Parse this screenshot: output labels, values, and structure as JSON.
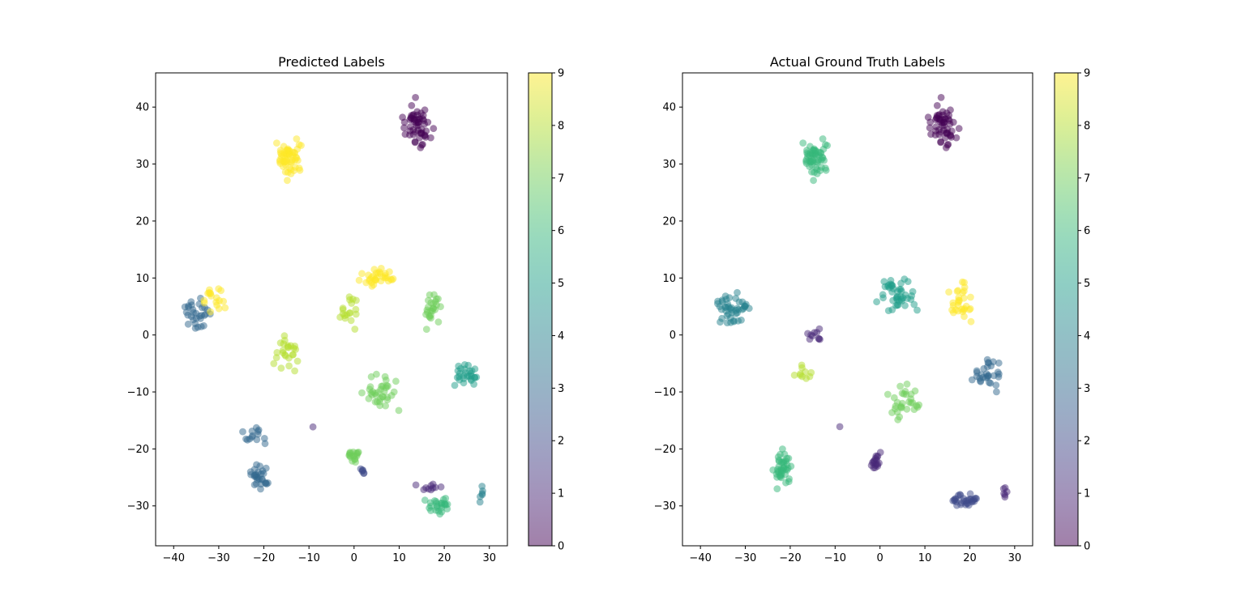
{
  "chart_data": [
    {
      "type": "scatter",
      "title": "Predicted Labels",
      "xlabel": "",
      "ylabel": "",
      "xlim": [
        -44,
        34
      ],
      "ylim": [
        -37,
        46
      ],
      "xticks": [
        -40,
        -30,
        -20,
        -10,
        0,
        10,
        20,
        30
      ],
      "yticks": [
        -30,
        -20,
        -10,
        0,
        10,
        20,
        30,
        40
      ],
      "colorbar": {
        "min": 0,
        "max": 9,
        "ticks": [
          0,
          1,
          2,
          3,
          4,
          5,
          6,
          7,
          8,
          9
        ],
        "colormap": "viridis",
        "alpha": 0.5
      },
      "grid": false,
      "clusters": [
        {
          "label": 0,
          "center": [
            14,
            37
          ],
          "spread": [
            4,
            5
          ],
          "count": 55
        },
        {
          "label": 9,
          "center": [
            -14,
            31
          ],
          "spread": [
            4,
            5
          ],
          "count": 55
        },
        {
          "label": 3,
          "center": [
            -35,
            3
          ],
          "spread": [
            4,
            4
          ],
          "count": 30
        },
        {
          "label": 9,
          "center": [
            -31,
            6
          ],
          "spread": [
            4,
            3
          ],
          "count": 18
        },
        {
          "label": 3,
          "center": [
            -22,
            -18
          ],
          "spread": [
            3,
            2
          ],
          "count": 14
        },
        {
          "label": 3,
          "center": [
            -21,
            -25
          ],
          "spread": [
            3,
            3
          ],
          "count": 28
        },
        {
          "label": 8,
          "center": [
            -15,
            -3
          ],
          "spread": [
            4,
            5
          ],
          "count": 25
        },
        {
          "label": 9,
          "center": [
            5,
            10
          ],
          "spread": [
            6,
            2
          ],
          "count": 32
        },
        {
          "label": 8,
          "center": [
            -1,
            4
          ],
          "spread": [
            3,
            4
          ],
          "count": 18
        },
        {
          "label": 7,
          "center": [
            17,
            5
          ],
          "spread": [
            3,
            5
          ],
          "count": 25
        },
        {
          "label": 7,
          "center": [
            6,
            -10
          ],
          "spread": [
            6,
            4
          ],
          "count": 35
        },
        {
          "label": 7,
          "center": [
            0,
            -21
          ],
          "spread": [
            2,
            3
          ],
          "count": 18
        },
        {
          "label": 5,
          "center": [
            25,
            -7
          ],
          "spread": [
            4,
            3
          ],
          "count": 28
        },
        {
          "label": 2,
          "center": [
            2,
            -24
          ],
          "spread": [
            1,
            1
          ],
          "count": 6
        },
        {
          "label": 6,
          "center": [
            19,
            -30
          ],
          "spread": [
            5,
            2
          ],
          "count": 25
        },
        {
          "label": 1,
          "center": [
            17,
            -27
          ],
          "spread": [
            4,
            1
          ],
          "count": 10
        },
        {
          "label": 4,
          "center": [
            28,
            -28
          ],
          "spread": [
            1,
            2
          ],
          "count": 6
        },
        {
          "label": 1,
          "center": [
            -9,
            -16
          ],
          "spread": [
            0.3,
            0.3
          ],
          "count": 1
        }
      ]
    },
    {
      "type": "scatter",
      "title": "Actual Ground Truth Labels",
      "xlabel": "",
      "ylabel": "",
      "xlim": [
        -44,
        34
      ],
      "ylim": [
        -37,
        46
      ],
      "xticks": [
        -40,
        -30,
        -20,
        -10,
        0,
        10,
        20,
        30
      ],
      "yticks": [
        -30,
        -20,
        -10,
        0,
        10,
        20,
        30,
        40
      ],
      "colorbar": {
        "min": 0,
        "max": 9,
        "ticks": [
          0,
          1,
          2,
          3,
          4,
          5,
          6,
          7,
          8,
          9
        ],
        "colormap": "viridis",
        "alpha": 0.5
      },
      "grid": false,
      "clusters": [
        {
          "label": 0,
          "center": [
            14,
            37
          ],
          "spread": [
            4,
            5
          ],
          "count": 55
        },
        {
          "label": 6,
          "center": [
            -14,
            31
          ],
          "spread": [
            4,
            5
          ],
          "count": 55
        },
        {
          "label": 4,
          "center": [
            -33,
            4
          ],
          "spread": [
            5,
            4
          ],
          "count": 45
        },
        {
          "label": 5,
          "center": [
            4,
            7
          ],
          "spread": [
            6,
            4
          ],
          "count": 45
        },
        {
          "label": 9,
          "center": [
            18,
            5
          ],
          "spread": [
            3,
            5
          ],
          "count": 30
        },
        {
          "label": 1,
          "center": [
            -15,
            0
          ],
          "spread": [
            3,
            2
          ],
          "count": 10
        },
        {
          "label": 8,
          "center": [
            -17,
            -7
          ],
          "spread": [
            4,
            3
          ],
          "count": 10
        },
        {
          "label": 7,
          "center": [
            5,
            -12
          ],
          "spread": [
            6,
            4
          ],
          "count": 30
        },
        {
          "label": 3,
          "center": [
            24,
            -7
          ],
          "spread": [
            5,
            4
          ],
          "count": 30
        },
        {
          "label": 6,
          "center": [
            -22,
            -23
          ],
          "spread": [
            3,
            5
          ],
          "count": 40
        },
        {
          "label": 1,
          "center": [
            -1,
            -22
          ],
          "spread": [
            2,
            3
          ],
          "count": 18
        },
        {
          "label": 2,
          "center": [
            19,
            -29
          ],
          "spread": [
            5,
            2
          ],
          "count": 30
        },
        {
          "label": 1,
          "center": [
            28,
            -28
          ],
          "spread": [
            1,
            2
          ],
          "count": 6
        },
        {
          "label": 1,
          "center": [
            -9,
            -16
          ],
          "spread": [
            0.3,
            0.3
          ],
          "count": 1
        }
      ]
    }
  ]
}
